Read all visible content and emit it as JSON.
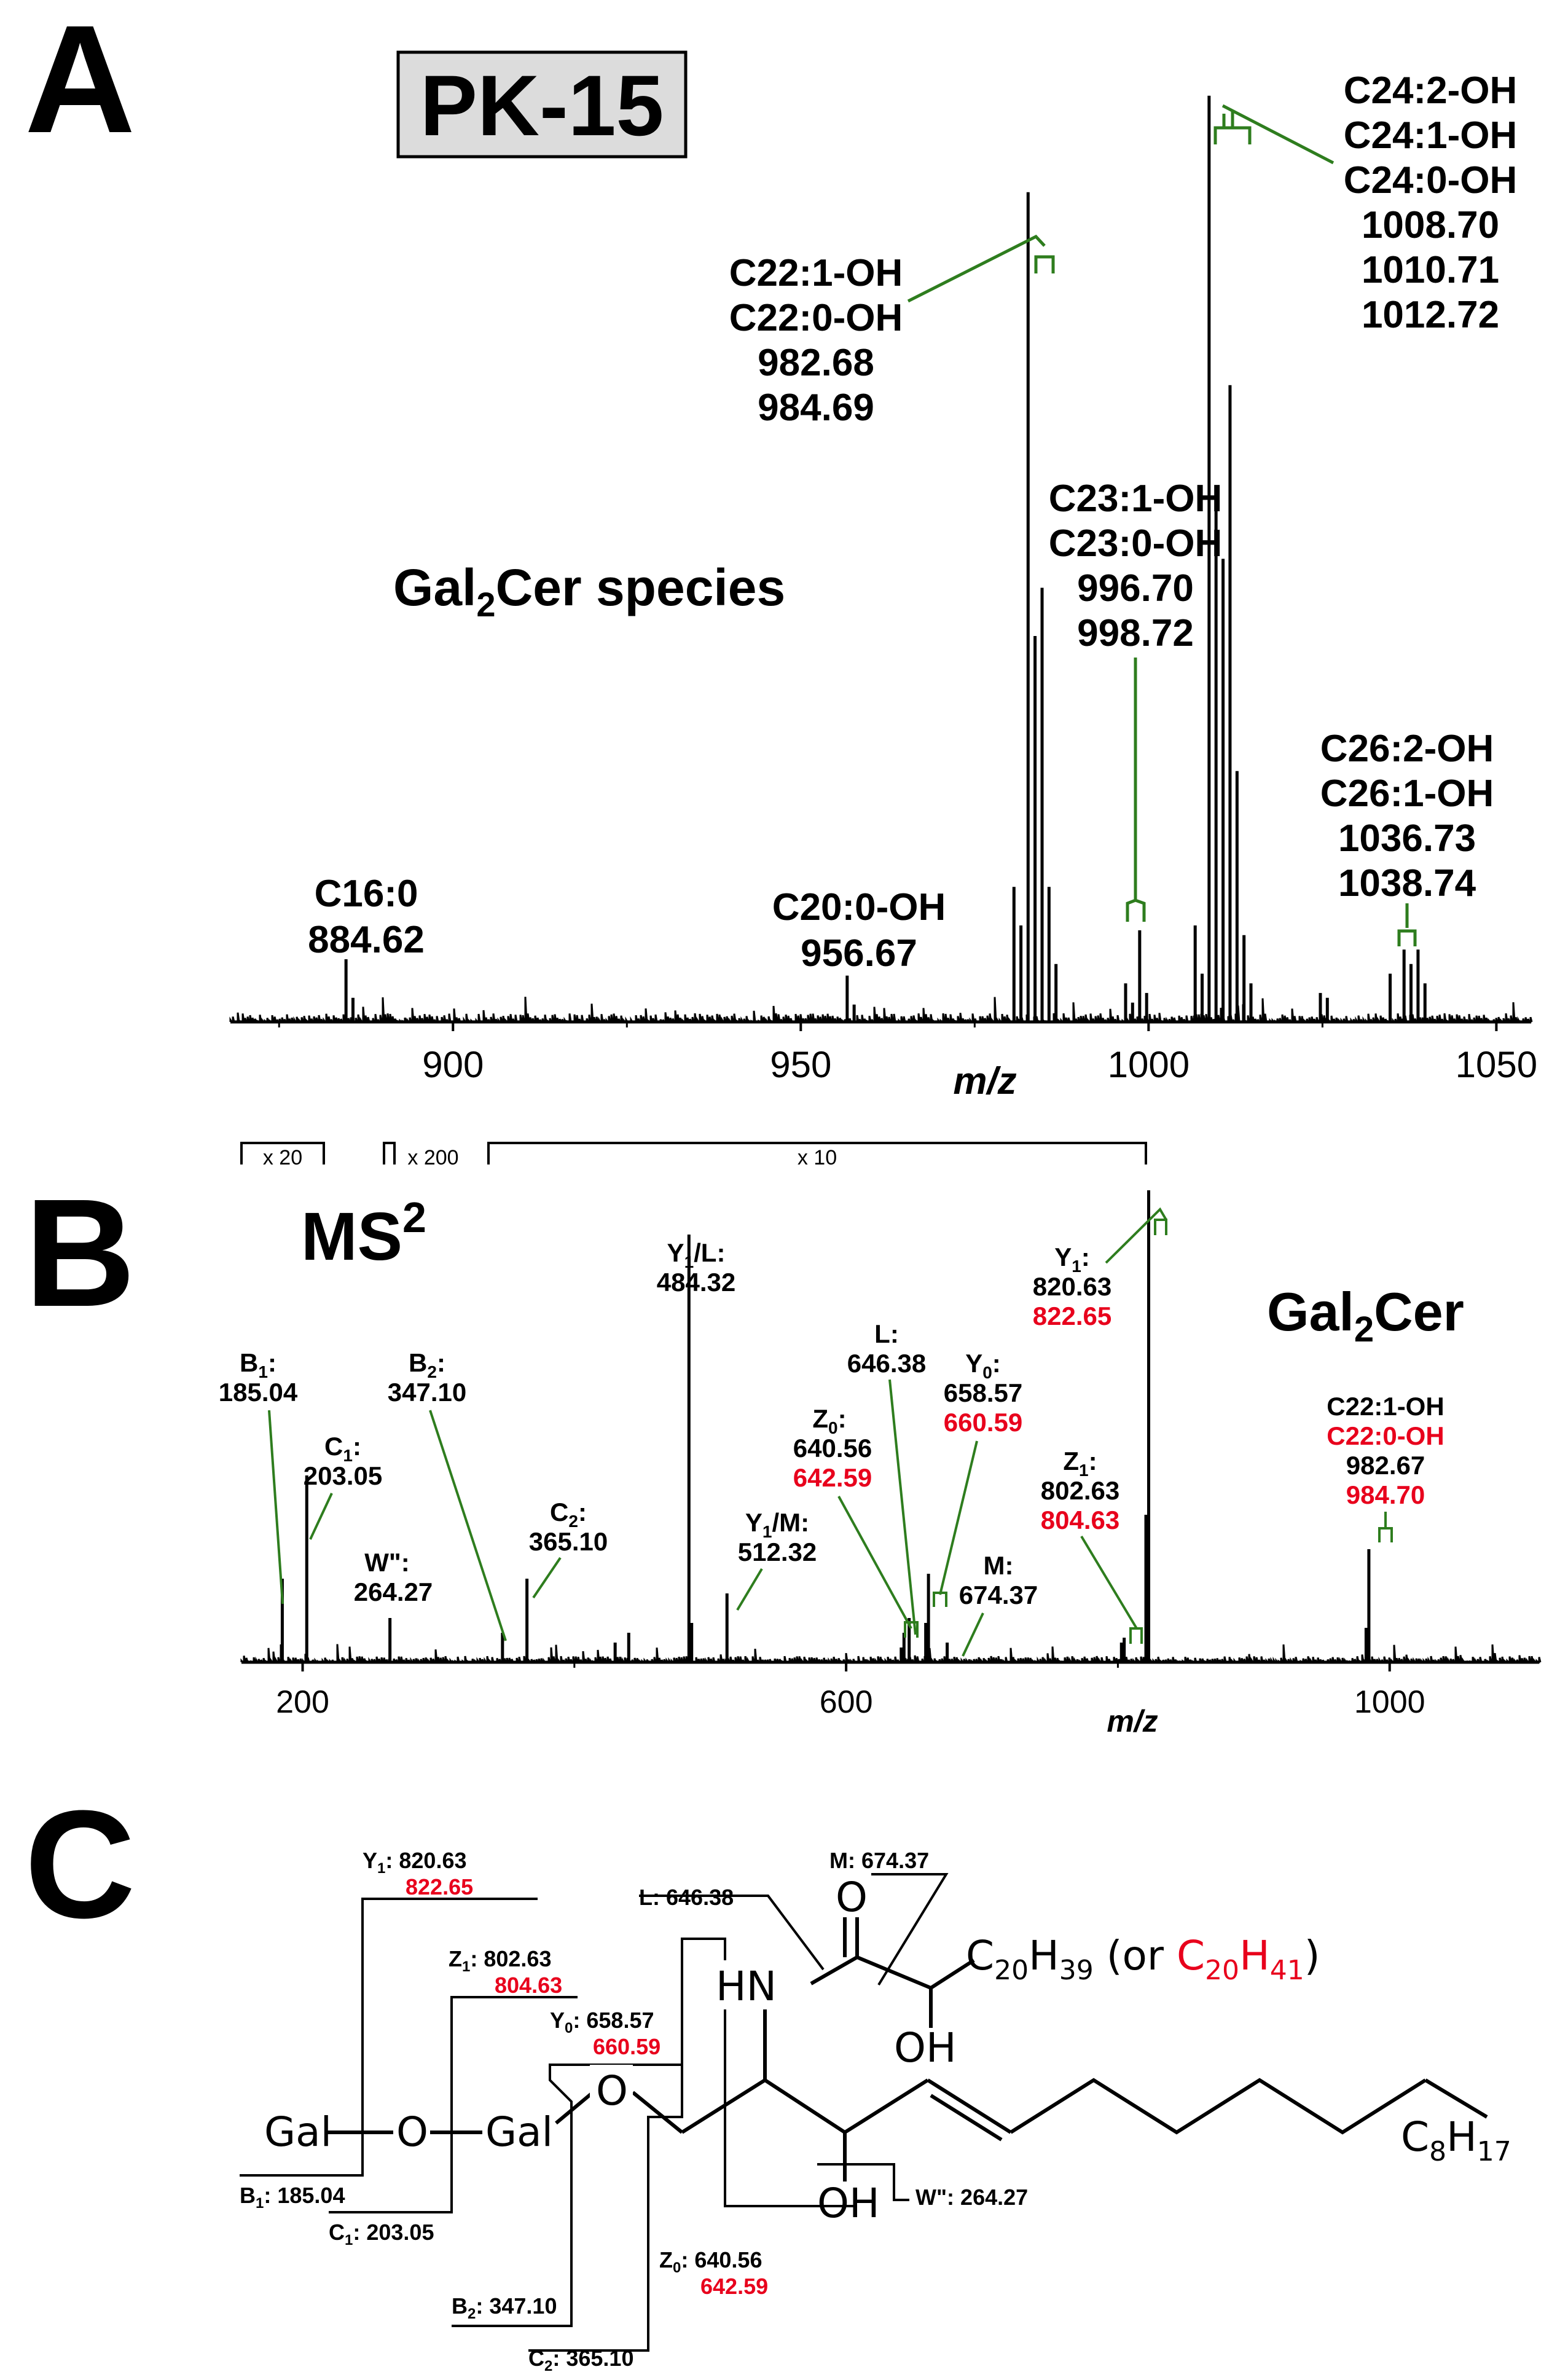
{
  "panels": {
    "a": "A",
    "b": "B",
    "c": "C"
  },
  "colors": {
    "green": "#2e7d1e",
    "red": "#e8001c",
    "black": "#000000"
  },
  "chart_data": [
    {
      "type": "line",
      "subtype": "mass-spectrum",
      "title": "PK-15",
      "subtitle_main": "Gal",
      "subtitle_sub": "2",
      "subtitle_rest": "Cer species",
      "xlabel": "m/z",
      "xlim": [
        868,
        1055
      ],
      "ticks": [
        900,
        950,
        1000,
        1050
      ],
      "tick_labels": [
        "900",
        "950",
        "1000",
        "1050"
      ],
      "peaks": [
        {
          "x": 884.62,
          "y": 0.065
        },
        {
          "x": 885.62,
          "y": 0.025
        },
        {
          "x": 956.67,
          "y": 0.048
        },
        {
          "x": 957.67,
          "y": 0.018
        },
        {
          "x": 980.65,
          "y": 0.14
        },
        {
          "x": 981.65,
          "y": 0.1
        },
        {
          "x": 982.68,
          "y": 0.86
        },
        {
          "x": 983.68,
          "y": 0.4
        },
        {
          "x": 984.69,
          "y": 0.45
        },
        {
          "x": 985.69,
          "y": 0.14
        },
        {
          "x": 986.69,
          "y": 0.06
        },
        {
          "x": 996.7,
          "y": 0.04
        },
        {
          "x": 997.7,
          "y": 0.02
        },
        {
          "x": 998.72,
          "y": 0.095
        },
        {
          "x": 999.72,
          "y": 0.03
        },
        {
          "x": 1006.7,
          "y": 0.1
        },
        {
          "x": 1007.7,
          "y": 0.05
        },
        {
          "x": 1008.7,
          "y": 0.96
        },
        {
          "x": 1009.7,
          "y": 0.55
        },
        {
          "x": 1010.71,
          "y": 0.48
        },
        {
          "x": 1011.71,
          "y": 0.66
        },
        {
          "x": 1012.72,
          "y": 0.26
        },
        {
          "x": 1013.72,
          "y": 0.09
        },
        {
          "x": 1014.72,
          "y": 0.04
        },
        {
          "x": 1024.7,
          "y": 0.03
        },
        {
          "x": 1025.7,
          "y": 0.025
        },
        {
          "x": 1034.73,
          "y": 0.05
        },
        {
          "x": 1036.73,
          "y": 0.075
        },
        {
          "x": 1037.73,
          "y": 0.06
        },
        {
          "x": 1038.74,
          "y": 0.075
        },
        {
          "x": 1039.74,
          "y": 0.04
        }
      ],
      "annotations": [
        {
          "lines": [
            "C16:0",
            "884.62"
          ]
        },
        {
          "lines": [
            "C20:0-OH",
            "956.67"
          ]
        },
        {
          "lines": [
            "C22:1-OH",
            "C22:0-OH",
            "982.68",
            "984.69"
          ]
        },
        {
          "lines": [
            "C23:1-OH",
            "C23:0-OH",
            "996.70",
            "998.72"
          ]
        },
        {
          "lines": [
            "C24:2-OH",
            "C24:1-OH",
            "C24:0-OH",
            "1008.70",
            "1010.71",
            "1012.72"
          ]
        },
        {
          "lines": [
            "C26:2-OH",
            "C26:1-OH",
            "1036.73",
            "1038.74"
          ]
        }
      ]
    },
    {
      "type": "line",
      "subtype": "ms2-spectrum",
      "title_main": "MS",
      "title_sup": "2",
      "side_main": "Gal",
      "side_sub": "2",
      "side_rest": "Cer",
      "xlabel": "m/z",
      "xlim": [
        155,
        1110
      ],
      "ticks": [
        200,
        600,
        1000
      ],
      "tick_labels": [
        "200",
        "600",
        "1000"
      ],
      "zoom_labels": [
        "x 20",
        "x 200",
        "x 10"
      ],
      "zoom_ranges": [
        [
          155,
          215
        ],
        [
          260,
          270
        ],
        [
          335,
          815
        ]
      ],
      "peaks": [
        {
          "x": 185.04,
          "y": 0.17
        },
        {
          "x": 203.05,
          "y": 0.38
        },
        {
          "x": 264.27,
          "y": 0.09
        },
        {
          "x": 347.1,
          "y": 0.06
        },
        {
          "x": 365.1,
          "y": 0.17
        },
        {
          "x": 430.0,
          "y": 0.04
        },
        {
          "x": 440.0,
          "y": 0.06
        },
        {
          "x": 484.32,
          "y": 0.87
        },
        {
          "x": 486.32,
          "y": 0.08
        },
        {
          "x": 512.32,
          "y": 0.14
        },
        {
          "x": 640.56,
          "y": 0.03
        },
        {
          "x": 642.59,
          "y": 0.06
        },
        {
          "x": 646.38,
          "y": 0.09
        },
        {
          "x": 658.57,
          "y": 0.08
        },
        {
          "x": 660.59,
          "y": 0.18
        },
        {
          "x": 674.37,
          "y": 0.04
        },
        {
          "x": 802.63,
          "y": 0.04
        },
        {
          "x": 804.63,
          "y": 0.05
        },
        {
          "x": 820.63,
          "y": 0.3
        },
        {
          "x": 822.65,
          "y": 0.96
        },
        {
          "x": 982.67,
          "y": 0.07
        },
        {
          "x": 984.7,
          "y": 0.23
        }
      ],
      "annotations": [
        {
          "letter": "B",
          "sub": "1",
          "black": [
            "185.04"
          ],
          "red": []
        },
        {
          "letter": "C",
          "sub": "1",
          "black": [
            "203.05"
          ],
          "red": []
        },
        {
          "letter": "W\"",
          "sub": "",
          "black": [
            "264.27"
          ],
          "red": []
        },
        {
          "letter": "B",
          "sub": "2",
          "black": [
            "347.10"
          ],
          "red": []
        },
        {
          "letter": "C",
          "sub": "2",
          "black": [
            "365.10"
          ],
          "red": []
        },
        {
          "letter": "Y",
          "sub": "1",
          "suffix": "/L:",
          "black": [
            "484.32"
          ],
          "red": []
        },
        {
          "letter": "Y",
          "sub": "1",
          "suffix": "/M:",
          "black": [
            "512.32"
          ],
          "red": []
        },
        {
          "letter": "Z",
          "sub": "0",
          "black": [
            "640.56"
          ],
          "red": [
            "642.59"
          ]
        },
        {
          "letter": "L",
          "sub": "",
          "black": [
            "646.38"
          ],
          "red": []
        },
        {
          "letter": "Y",
          "sub": "0",
          "black": [
            "658.57"
          ],
          "red": [
            "660.59"
          ]
        },
        {
          "letter": "M",
          "sub": "",
          "black": [
            "674.37"
          ],
          "red": []
        },
        {
          "letter": "Z",
          "sub": "1",
          "black": [
            "802.63"
          ],
          "red": [
            "804.63"
          ]
        },
        {
          "letter": "Y",
          "sub": "1",
          "black": [
            "820.63"
          ],
          "red": [
            "822.65"
          ]
        }
      ],
      "precursor": {
        "black_label": "C22:1-OH",
        "red_label": "C22:0-OH",
        "black_mz": "982.67",
        "red_mz": "984.70"
      }
    }
  ],
  "panel_c": {
    "gal1": "Gal",
    "gal2": "Gal",
    "o_link": "O",
    "o_ring": "O",
    "hn": "HN",
    "carbonyl_o": "O",
    "oh_alpha": "OH",
    "oh_base": "OH",
    "chain_main": "C",
    "chain_main_sub": "20",
    "chain_main_h": "H",
    "chain_main_hsub": "39",
    "chain_alt_open": " (or ",
    "chain_alt": "C",
    "chain_alt_sub": "20",
    "chain_alt_h": "H",
    "chain_alt_hsub": "41",
    "chain_alt_close": ")",
    "tail": "C",
    "tail_sub": "8",
    "tail_h": "H",
    "tail_hsub": "17",
    "labels": {
      "y1": {
        "letter": "Y",
        "sub": "1",
        "black": "820.63",
        "red": "822.65"
      },
      "z1": {
        "letter": "Z",
        "sub": "1",
        "black": "802.63",
        "red": "804.63"
      },
      "y0": {
        "letter": "Y",
        "sub": "0",
        "black": "658.57",
        "red": "660.59"
      },
      "z0": {
        "letter": "Z",
        "sub": "0",
        "black": "640.56",
        "red": "642.59"
      },
      "b1": {
        "letter": "B",
        "sub": "1",
        "black": "185.04"
      },
      "c1": {
        "letter": "C",
        "sub": "1",
        "black": "203.05"
      },
      "b2": {
        "letter": "B",
        "sub": "2",
        "black": "347.10"
      },
      "c2": {
        "letter": "C",
        "sub": "2",
        "black": "365.10"
      },
      "l": {
        "letter": "L",
        "black": "646.38"
      },
      "m": {
        "letter": "M",
        "black": "674.37"
      },
      "w": {
        "letter": "W\"",
        "black": "264.27"
      }
    }
  }
}
